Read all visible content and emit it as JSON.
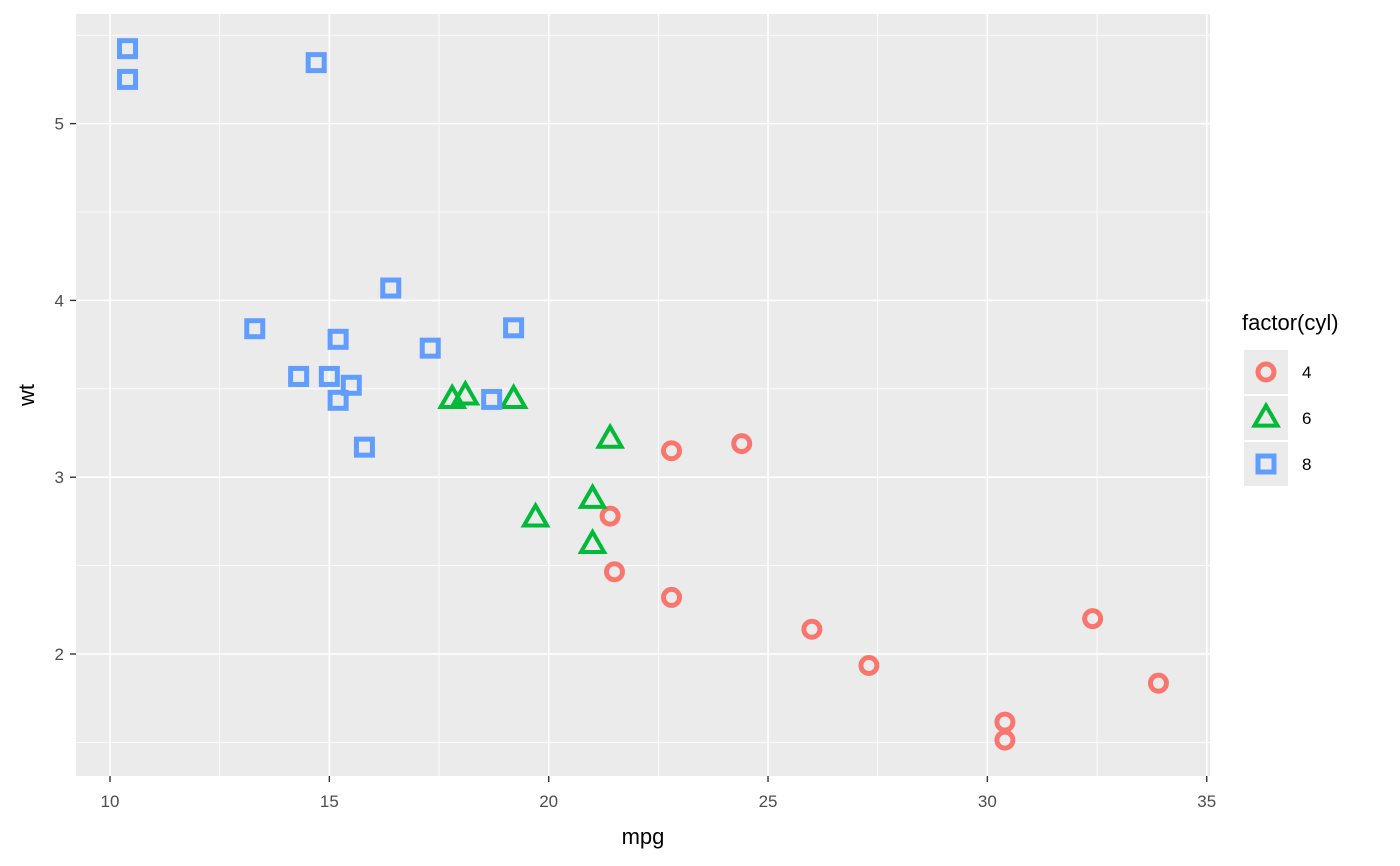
{
  "chart_data": {
    "type": "scatter",
    "xlabel": "mpg",
    "ylabel": "wt",
    "xlim": [
      9.225,
      35.075
    ],
    "ylim": [
      1.31,
      5.62
    ],
    "x_ticks": [
      10,
      15,
      20,
      25,
      30,
      35
    ],
    "x_tick_labels": [
      "10",
      "15",
      "20",
      "25",
      "30",
      "35"
    ],
    "y_ticks": [
      2,
      3,
      4,
      5
    ],
    "y_tick_labels": [
      "2",
      "3",
      "4",
      "5"
    ],
    "grid": true,
    "legend": {
      "title": "factor(cyl)",
      "placement": "right"
    },
    "series": [
      {
        "name": "4",
        "shape": "circle",
        "color": "#F8766D",
        "points": [
          [
            22.8,
            2.32
          ],
          [
            24.4,
            3.19
          ],
          [
            22.8,
            3.15
          ],
          [
            32.4,
            2.2
          ],
          [
            30.4,
            1.615
          ],
          [
            33.9,
            1.835
          ],
          [
            21.5,
            2.465
          ],
          [
            27.3,
            1.935
          ],
          [
            26.0,
            2.14
          ],
          [
            30.4,
            1.513
          ],
          [
            21.4,
            2.78
          ]
        ]
      },
      {
        "name": "6",
        "shape": "triangle",
        "color": "#00BA38",
        "points": [
          [
            21.0,
            2.62
          ],
          [
            21.0,
            2.875
          ],
          [
            21.4,
            3.215
          ],
          [
            18.1,
            3.46
          ],
          [
            19.2,
            3.44
          ],
          [
            17.8,
            3.44
          ],
          [
            19.7,
            2.77
          ]
        ]
      },
      {
        "name": "8",
        "shape": "square",
        "color": "#619CFF",
        "points": [
          [
            18.7,
            3.44
          ],
          [
            14.3,
            3.57
          ],
          [
            16.4,
            4.07
          ],
          [
            17.3,
            3.73
          ],
          [
            15.2,
            3.78
          ],
          [
            10.4,
            5.25
          ],
          [
            10.4,
            5.424
          ],
          [
            14.7,
            5.345
          ],
          [
            15.5,
            3.52
          ],
          [
            15.2,
            3.435
          ],
          [
            13.3,
            3.84
          ],
          [
            19.2,
            3.845
          ],
          [
            15.8,
            3.17
          ],
          [
            15.0,
            3.57
          ]
        ]
      }
    ]
  }
}
